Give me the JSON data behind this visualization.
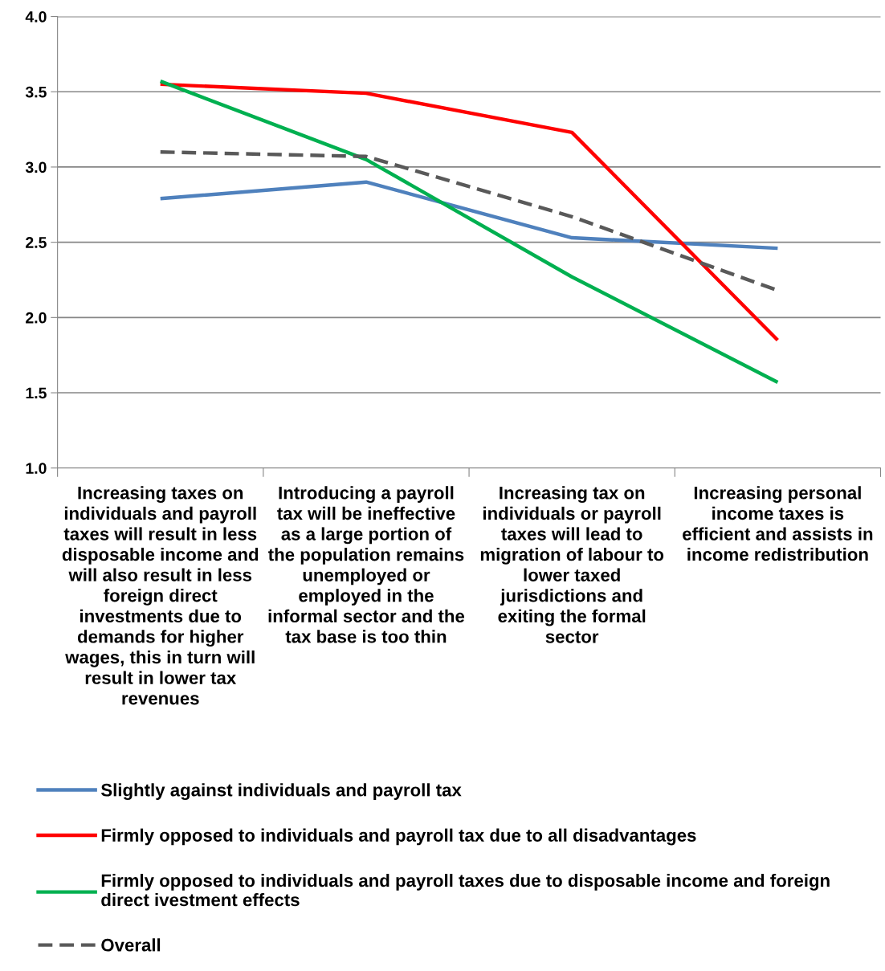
{
  "chart_data": {
    "type": "line",
    "categories": [
      "Increasing taxes on individuals and payroll taxes will result in less disposable income and will also result in less foreign direct investments due to demands for higher wages, this in turn will result in lower tax revenues",
      "Introducing a payroll tax will be ineffective as a large portion of the population remains unemployed or employed in the informal sector and the tax base is too thin",
      "Increasing tax on individuals or payroll taxes will lead to migration of labour to lower taxed jurisdictions and exiting the formal sector",
      "Increasing personal income taxes is efficient and assists in income redistribution"
    ],
    "series": [
      {
        "name": "Slightly against individuals and payroll tax",
        "color": "#4f81bd",
        "values": [
          2.79,
          2.9,
          2.53,
          2.46
        ]
      },
      {
        "name": "Firmly opposed to individuals and payroll tax due to all disadvantages",
        "color": "#ff0000",
        "values": [
          3.55,
          3.49,
          3.23,
          1.85
        ]
      },
      {
        "name": "Firmly opposed to individuals and payroll taxes due to disposable income and foreign direct ivestment effects",
        "color": "#00b050",
        "values": [
          3.57,
          3.05,
          2.27,
          1.57
        ]
      },
      {
        "name": "Overall",
        "color": "#595959",
        "values": [
          3.1,
          3.07,
          2.67,
          2.18
        ],
        "line_style": "dashed"
      }
    ],
    "ylim": [
      1.0,
      4.0
    ],
    "yticks": [
      {
        "value": 1.0,
        "label": "1.0"
      },
      {
        "value": 1.5,
        "label": "1.5"
      },
      {
        "value": 2.0,
        "label": "2.0"
      },
      {
        "value": 2.5,
        "label": "2.5"
      },
      {
        "value": 3.0,
        "label": "3.0"
      },
      {
        "value": 3.5,
        "label": "3.5"
      },
      {
        "value": 4.0,
        "label": "4.0"
      }
    ],
    "grid": "y",
    "legend": "bottom",
    "marker": "none"
  }
}
